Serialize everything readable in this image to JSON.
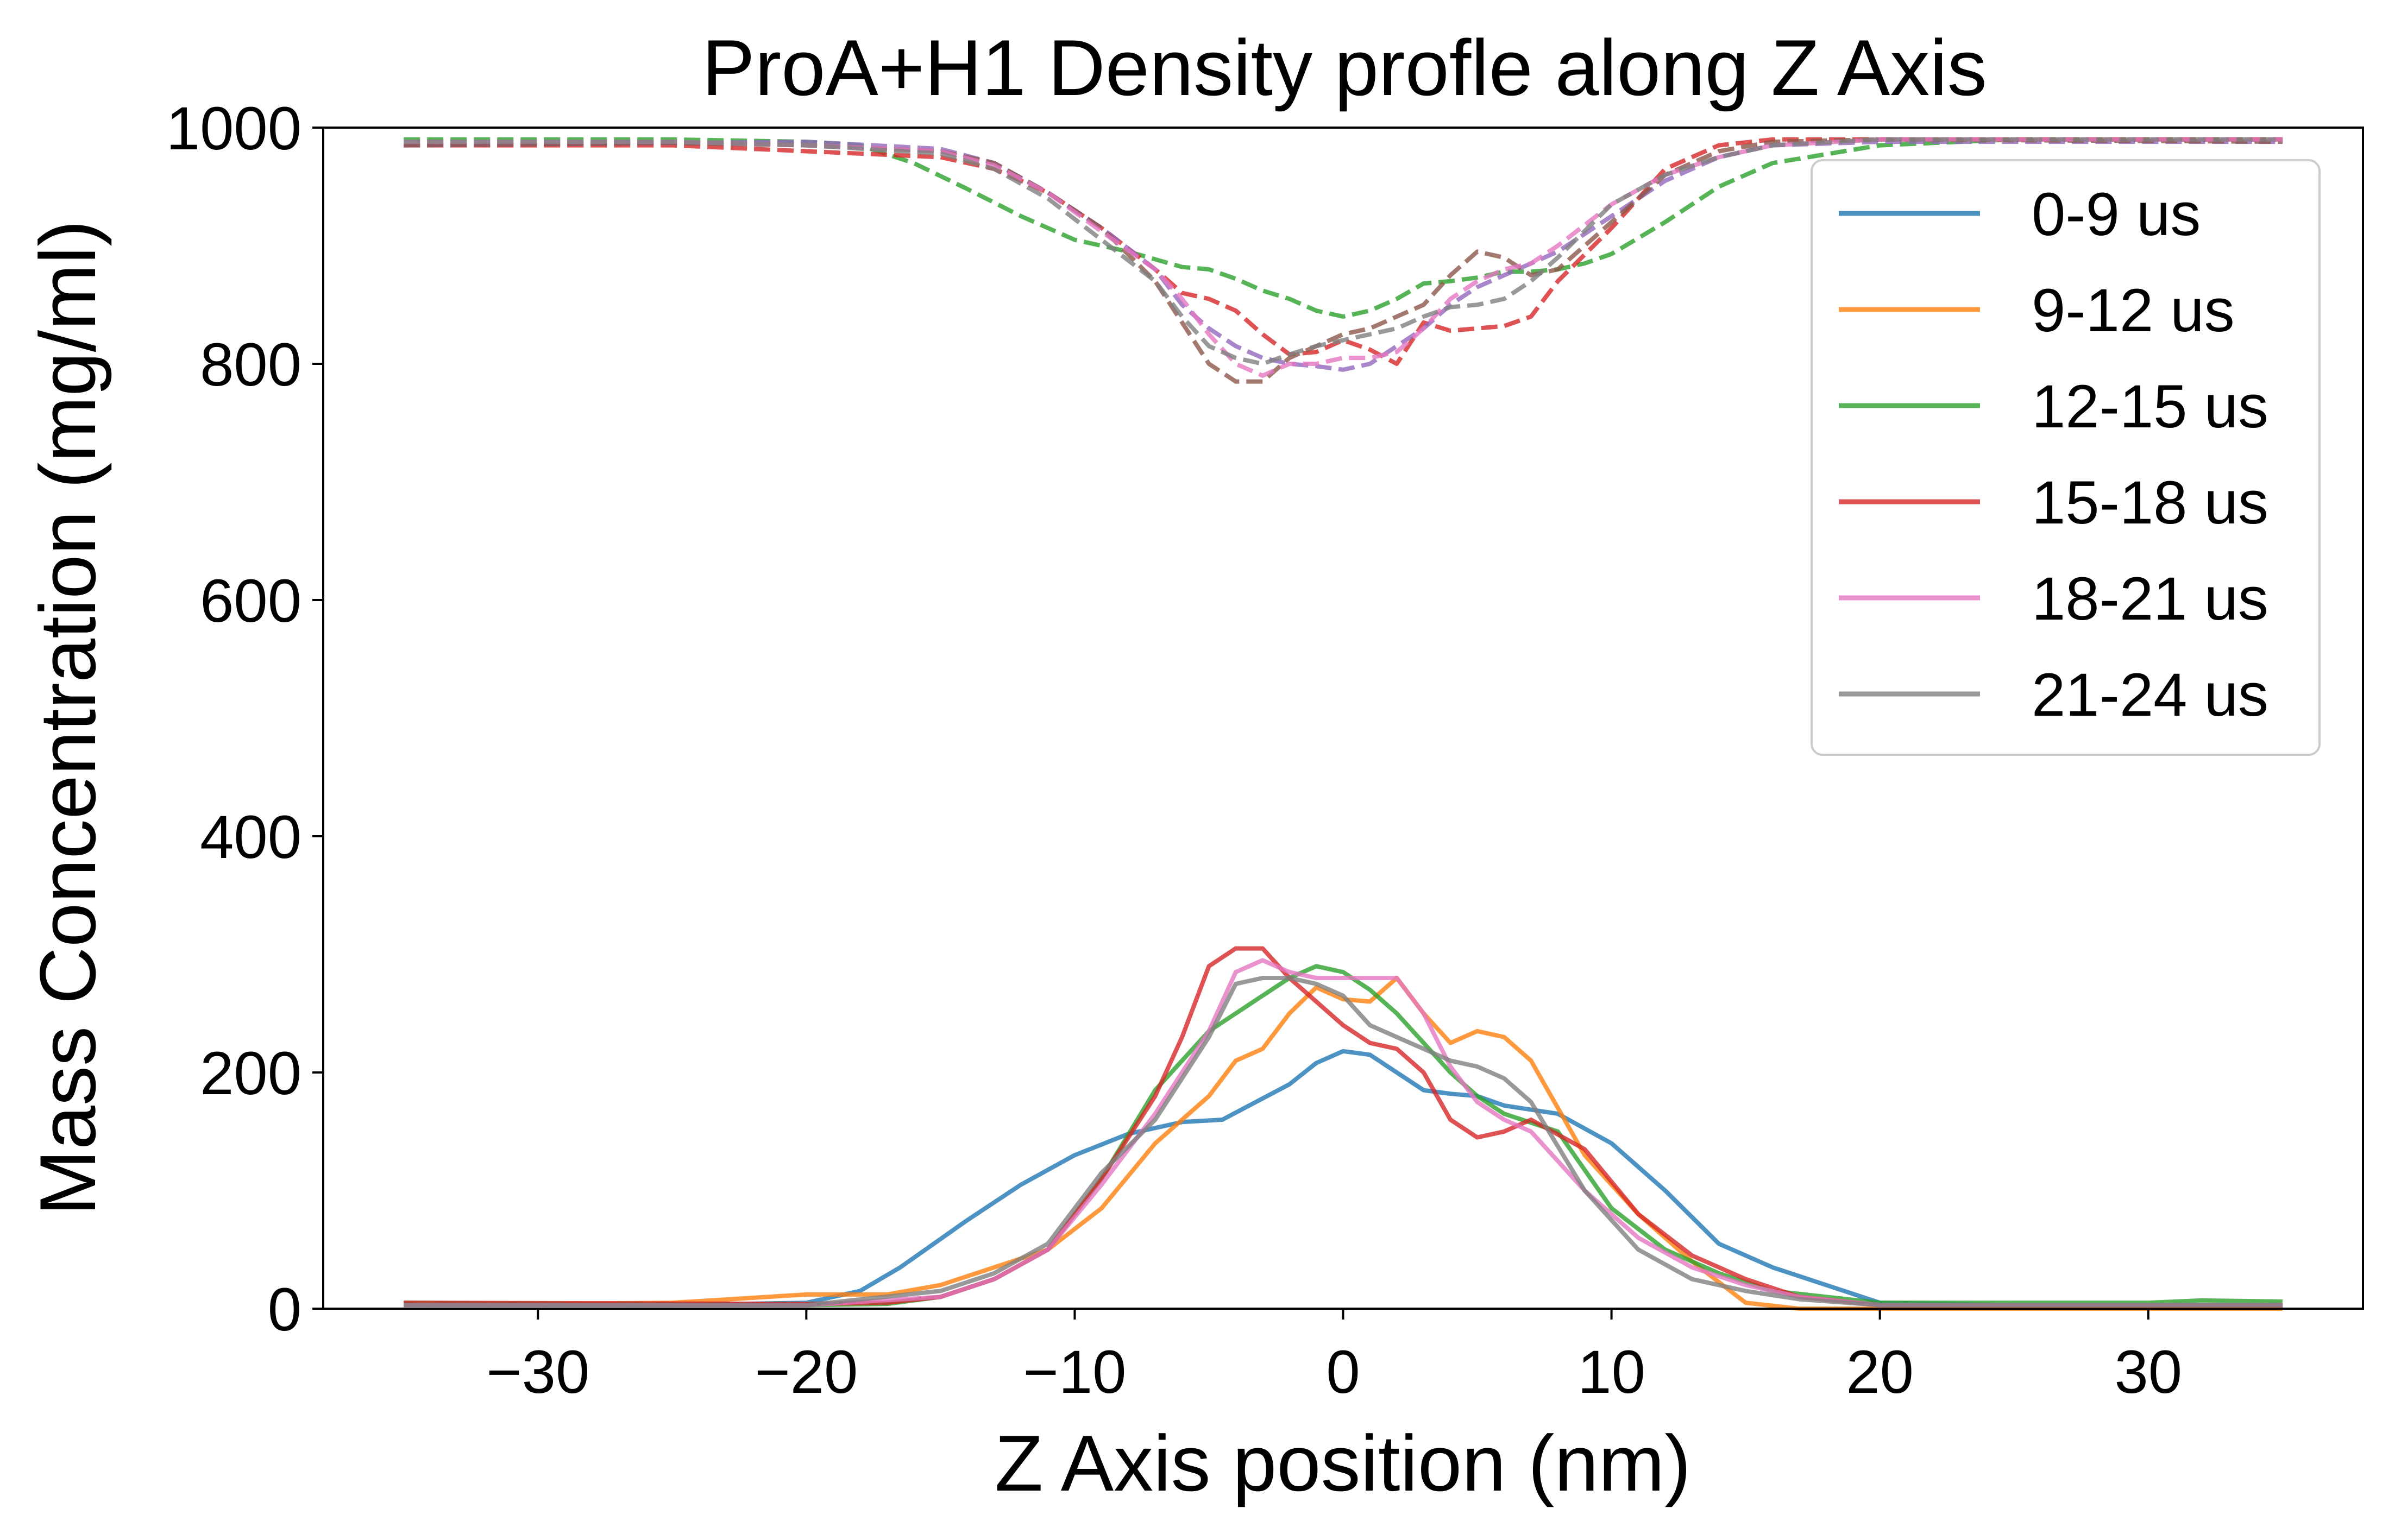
{
  "chart_data": {
    "type": "line",
    "title": "ProA+H1 Density profle along Z Axis",
    "xlabel": "Z Axis position (nm)",
    "ylabel": "Mass Concentration (mg/ml)",
    "xlim": [
      -38,
      38
    ],
    "ylim": [
      0,
      1000
    ],
    "xticks": [
      -30,
      -20,
      -10,
      0,
      10,
      20,
      30
    ],
    "xtick_labels": [
      "−30",
      "−20",
      "−10",
      "0",
      "10",
      "20",
      "30"
    ],
    "yticks": [
      0,
      200,
      400,
      600,
      800,
      1000
    ],
    "ytick_labels": [
      "0",
      "200",
      "400",
      "600",
      "800",
      "1000"
    ],
    "grid": false,
    "legend_position": "top-right",
    "series": [
      {
        "name": "0-9 us",
        "color": "#1f77b4",
        "style": "solid",
        "x": [
          -35,
          -25,
          -20,
          -18,
          -16.5,
          -14,
          -12,
          -10,
          -8,
          -6,
          -4.5,
          -3.5,
          -2,
          -1,
          0,
          1,
          2,
          3,
          4,
          5,
          6,
          8,
          10,
          12,
          14,
          16,
          18,
          20,
          25,
          35
        ],
        "y": [
          3,
          3,
          5,
          15,
          35,
          75,
          105,
          130,
          148,
          158,
          160,
          172,
          190,
          208,
          218,
          215,
          200,
          185,
          182,
          180,
          172,
          165,
          140,
          100,
          55,
          35,
          20,
          5,
          3,
          3
        ]
      },
      {
        "name": "9-12 us",
        "color": "#ff7f0e",
        "style": "solid",
        "x": [
          -35,
          -25,
          -20,
          -17,
          -15,
          -13,
          -11,
          -9,
          -7,
          -5,
          -4,
          -3,
          -2,
          -1,
          0,
          1,
          2,
          3,
          4,
          5,
          6,
          7,
          9,
          11,
          13,
          15,
          17,
          20,
          35
        ],
        "y": [
          3,
          5,
          12,
          12,
          20,
          35,
          50,
          85,
          140,
          180,
          210,
          220,
          250,
          272,
          262,
          260,
          280,
          250,
          225,
          235,
          230,
          210,
          130,
          80,
          40,
          5,
          0,
          0,
          0
        ]
      },
      {
        "name": "12-15 us",
        "color": "#2ca02c",
        "style": "solid",
        "x": [
          -35,
          -20,
          -17,
          -15,
          -13,
          -11,
          -9,
          -7,
          -5,
          -3,
          -2,
          -1,
          0,
          1,
          2,
          3,
          4,
          5,
          6,
          8,
          10,
          12,
          14,
          16,
          20,
          30,
          32,
          35
        ],
        "y": [
          5,
          3,
          4,
          10,
          25,
          50,
          110,
          185,
          235,
          265,
          280,
          290,
          285,
          270,
          250,
          225,
          200,
          180,
          165,
          150,
          85,
          50,
          30,
          15,
          5,
          5,
          7,
          6
        ]
      },
      {
        "name": "15-18 us",
        "color": "#d62728",
        "style": "solid",
        "x": [
          -35,
          -20,
          -17,
          -15,
          -13,
          -11,
          -9,
          -7,
          -6,
          -5,
          -4,
          -3,
          -2,
          -1,
          0,
          1,
          2,
          3,
          4,
          5,
          6,
          7,
          9,
          11,
          13,
          15,
          17,
          20,
          35
        ],
        "y": [
          5,
          4,
          5,
          10,
          25,
          50,
          110,
          180,
          230,
          290,
          305,
          305,
          280,
          260,
          240,
          225,
          220,
          200,
          160,
          145,
          150,
          160,
          135,
          80,
          45,
          25,
          10,
          3,
          3
        ]
      },
      {
        "name": "18-21 us",
        "color": "#e377c2",
        "style": "solid",
        "x": [
          -35,
          -20,
          -15,
          -13,
          -11,
          -9,
          -7,
          -5,
          -4,
          -3,
          -2,
          -1,
          0,
          1,
          2,
          3,
          4,
          5,
          6,
          7,
          9,
          11,
          13,
          15,
          17,
          20,
          35
        ],
        "y": [
          3,
          3,
          10,
          25,
          50,
          105,
          165,
          235,
          285,
          295,
          285,
          280,
          280,
          280,
          280,
          250,
          205,
          175,
          160,
          150,
          100,
          60,
          35,
          20,
          10,
          3,
          3
        ]
      },
      {
        "name": "21-24 us",
        "color": "#7f7f7f",
        "style": "solid",
        "x": [
          -35,
          -20,
          -15,
          -13,
          -11,
          -9,
          -7,
          -5,
          -4,
          -3,
          -2,
          -1,
          0,
          1,
          2,
          3,
          4,
          5,
          6,
          7,
          9,
          11,
          13,
          15,
          17,
          20,
          35
        ],
        "y": [
          3,
          3,
          15,
          30,
          55,
          115,
          160,
          230,
          275,
          280,
          280,
          275,
          265,
          240,
          230,
          220,
          210,
          205,
          195,
          175,
          100,
          50,
          25,
          15,
          8,
          3,
          3
        ]
      },
      {
        "name": "",
        "color": "#2ca02c",
        "style": "dashed",
        "x": [
          -35,
          -25,
          -20,
          -18,
          -16,
          -14,
          -12,
          -10,
          -8,
          -6,
          -5,
          -4,
          -3,
          -2,
          -1,
          0,
          1,
          2,
          3,
          4,
          5,
          6,
          7,
          8,
          9,
          10,
          12,
          14,
          16,
          20,
          25,
          35
        ],
        "y": [
          990,
          990,
          988,
          985,
          970,
          948,
          925,
          905,
          895,
          882,
          880,
          872,
          862,
          855,
          845,
          840,
          845,
          855,
          868,
          870,
          873,
          878,
          878,
          880,
          885,
          893,
          920,
          950,
          970,
          985,
          990,
          990
        ]
      },
      {
        "name": "",
        "color": "#d62728",
        "style": "dashed",
        "x": [
          -35,
          -25,
          -20,
          -15,
          -13,
          -11,
          -9,
          -7,
          -6,
          -5,
          -4,
          -3,
          -2,
          -1,
          0,
          1,
          2,
          3,
          4,
          5,
          6,
          7,
          8,
          10,
          12,
          14,
          16,
          20,
          35
        ],
        "y": [
          985,
          985,
          980,
          975,
          965,
          945,
          915,
          880,
          860,
          855,
          845,
          825,
          808,
          810,
          820,
          812,
          800,
          835,
          828,
          830,
          832,
          840,
          870,
          915,
          965,
          985,
          990,
          990,
          990
        ]
      },
      {
        "name": "",
        "color": "#9467bd",
        "style": "dashed",
        "x": [
          -35,
          -25,
          -20,
          -15,
          -13,
          -11,
          -9,
          -7,
          -6,
          -5,
          -4,
          -3,
          -2,
          -1,
          0,
          1,
          2,
          3,
          4,
          5,
          6,
          8,
          10,
          12,
          14,
          16,
          20,
          35
        ],
        "y": [
          985,
          987,
          988,
          982,
          970,
          945,
          915,
          880,
          850,
          830,
          815,
          805,
          800,
          798,
          795,
          800,
          815,
          830,
          850,
          865,
          875,
          895,
          925,
          955,
          975,
          985,
          988,
          988
        ]
      },
      {
        "name": "",
        "color": "#8c564b",
        "style": "dashed",
        "x": [
          -35,
          -25,
          -20,
          -15,
          -13,
          -11,
          -9,
          -7,
          -6,
          -5,
          -4,
          -3,
          -2,
          -1,
          0,
          1,
          2,
          3,
          4,
          5,
          6,
          7,
          8,
          10,
          12,
          14,
          16,
          20,
          35
        ],
        "y": [
          985,
          987,
          985,
          980,
          970,
          945,
          915,
          870,
          835,
          800,
          785,
          785,
          805,
          815,
          825,
          830,
          840,
          850,
          875,
          895,
          890,
          875,
          880,
          920,
          960,
          980,
          988,
          990,
          988
        ]
      },
      {
        "name": "",
        "color": "#e377c2",
        "style": "dashed",
        "x": [
          -35,
          -25,
          -20,
          -15,
          -13,
          -11,
          -9,
          -7,
          -6,
          -5,
          -4,
          -3,
          -2,
          -1,
          0,
          1,
          2,
          3,
          4,
          5,
          6,
          7,
          8,
          10,
          12,
          14,
          16,
          20,
          35
        ],
        "y": [
          988,
          988,
          985,
          980,
          968,
          945,
          912,
          880,
          855,
          825,
          800,
          790,
          800,
          800,
          805,
          805,
          810,
          830,
          855,
          870,
          880,
          885,
          900,
          935,
          960,
          975,
          985,
          990,
          990
        ]
      },
      {
        "name": "",
        "color": "#7f7f7f",
        "style": "dashed",
        "x": [
          -35,
          -25,
          -20,
          -15,
          -13,
          -11,
          -9,
          -7,
          -6,
          -5,
          -4,
          -3,
          -2,
          -1,
          0,
          1,
          2,
          3,
          4,
          5,
          6,
          7,
          8,
          10,
          12,
          14,
          16,
          20,
          35
        ],
        "y": [
          988,
          988,
          985,
          978,
          965,
          940,
          905,
          870,
          840,
          815,
          805,
          800,
          808,
          815,
          820,
          825,
          830,
          840,
          848,
          850,
          855,
          870,
          890,
          935,
          960,
          975,
          985,
          990,
          990
        ]
      }
    ]
  }
}
